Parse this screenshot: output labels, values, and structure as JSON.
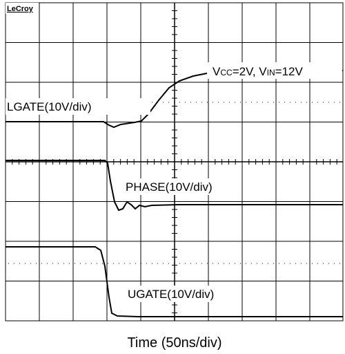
{
  "brand": "LeCroy",
  "condition": {
    "v1": "V",
    "sub1": "CC",
    "mid": "=2V, V",
    "sub2": "IN",
    "end": "=12V"
  },
  "traces": {
    "lgate": "LGATE(10V/div)",
    "phase": "PHASE(10V/div)",
    "ugate": "UGATE(10V/div)"
  },
  "x_label": "Time (50ns/div)"
}
